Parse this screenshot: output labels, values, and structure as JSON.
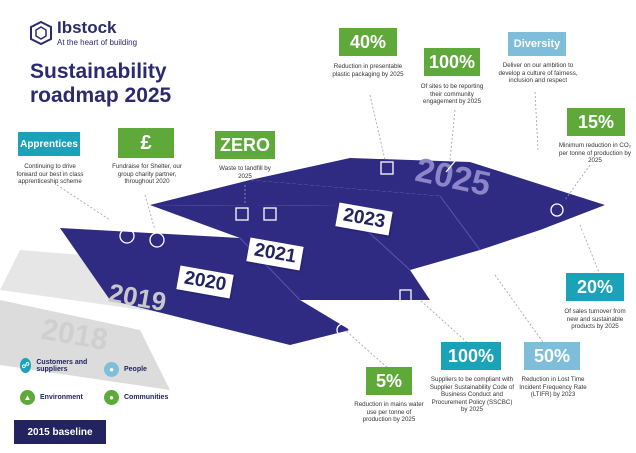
{
  "logo": {
    "name": "Ibstock",
    "tagline": "At the heart of building"
  },
  "title": {
    "line1": "Sustainability",
    "line2": "roadmap 2025"
  },
  "targets": [
    {
      "id": "apprentices",
      "badge": "Apprentices",
      "text": "Continuing to drive forward our best in class apprenticeship scheme"
    },
    {
      "id": "shelter",
      "badge": "£",
      "text": "Fundraise for Shelter, our group charity partner, throughout 2020"
    },
    {
      "id": "zero",
      "badge": "ZERO",
      "text": "Waste to landfill by 2025"
    },
    {
      "id": "plastic",
      "badge": "40%",
      "text": "Reduction in presentable plastic packaging by 2025"
    },
    {
      "id": "community",
      "badge": "100%",
      "text": "Of sites to be reporting their community engagement by 2025"
    },
    {
      "id": "diversity",
      "badge": "Diversity",
      "text": "Deliver on our ambition to develop a culture of fairness, inclusion and respect"
    },
    {
      "id": "co2",
      "badge": "15%",
      "text": "Minimum reduction in CO₂ per tonne of production by 2025"
    },
    {
      "id": "sales",
      "badge": "20%",
      "text": "Of sales turnover from new and sustainable products by 2025"
    },
    {
      "id": "ltifr",
      "badge": "50%",
      "text": "Reduction in Lost Time Incident Frequency Rate (LTIFR) by 2023"
    },
    {
      "id": "sscbc",
      "badge": "100%",
      "text": "Suppliers to be compliant with Supplier Sustainability Code of Business Conduct and Procurement Policy (SSCBC) by 2025"
    },
    {
      "id": "water",
      "badge": "5%",
      "text": "Reduction in mains water use per tonne of production by 2025"
    }
  ],
  "years": {
    "y2018": "2018",
    "y2019": "2019",
    "y2020": "2020",
    "y2021": "2021",
    "y2023": "2023",
    "y2025": "2025"
  },
  "legend": {
    "customers": "Customers and suppliers",
    "people": "People",
    "environment": "Environment",
    "communities": "Communities"
  },
  "baseline": "2015 baseline",
  "colors": {
    "navy": "#2b2a6e",
    "green": "#5fa83a",
    "teal": "#1aa3b8",
    "light_blue": "#7fbedb"
  }
}
